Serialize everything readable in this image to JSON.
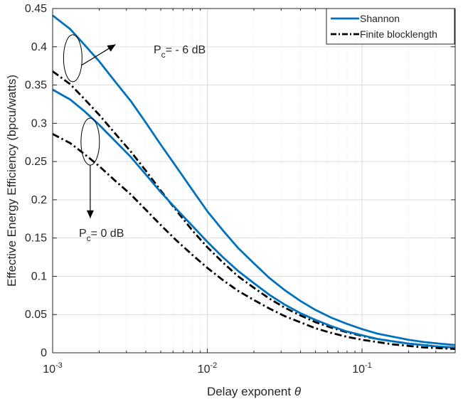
{
  "chart_data": {
    "type": "line",
    "xlabel": "Delay exponent θ",
    "ylabel": "Effective Energy Efficiency (bpcu/watts)",
    "x_scale": "log",
    "xlim": [
      0.001,
      0.4
    ],
    "ylim": [
      0,
      0.45
    ],
    "grid": true,
    "legend_position": "top-right",
    "x_ticks": [
      {
        "value": 0.001,
        "base": "10",
        "exp": "-3"
      },
      {
        "value": 0.01,
        "base": "10",
        "exp": "-2"
      },
      {
        "value": 0.1,
        "base": "10",
        "exp": "-1"
      }
    ],
    "y_ticks": [
      {
        "value": 0,
        "label": "0"
      },
      {
        "value": 0.05,
        "label": "0.05"
      },
      {
        "value": 0.1,
        "label": "0.1"
      },
      {
        "value": 0.15,
        "label": "0.15"
      },
      {
        "value": 0.2,
        "label": "0.2"
      },
      {
        "value": 0.25,
        "label": "0.25"
      },
      {
        "value": 0.3,
        "label": "0.3"
      },
      {
        "value": 0.35,
        "label": "0.35"
      },
      {
        "value": 0.4,
        "label": "0.4"
      },
      {
        "value": 0.45,
        "label": "0.45"
      }
    ],
    "legend": [
      {
        "label": "Shannon",
        "color": "#0072bd",
        "dash": "solid"
      },
      {
        "label": "Finite blocklength",
        "color": "#000000",
        "dash": "dashdot"
      }
    ],
    "series": [
      {
        "legend_index": 0,
        "group": "Pc = -6 dB",
        "color": "#0072bd",
        "dash": "solid",
        "x": [
          0.001,
          0.0013,
          0.0016,
          0.002,
          0.0025,
          0.0032,
          0.004,
          0.005,
          0.0063,
          0.008,
          0.01,
          0.0126,
          0.0158,
          0.02,
          0.0251,
          0.0316,
          0.0398,
          0.0501,
          0.0631,
          0.0794,
          0.1,
          0.126,
          0.158,
          0.2,
          0.251,
          0.316,
          0.4
        ],
        "y": [
          0.441,
          0.423,
          0.403,
          0.381,
          0.356,
          0.329,
          0.301,
          0.272,
          0.243,
          0.213,
          0.185,
          0.16,
          0.137,
          0.117,
          0.098,
          0.082,
          0.068,
          0.056,
          0.046,
          0.038,
          0.031,
          0.025,
          0.021,
          0.017,
          0.014,
          0.012,
          0.01
        ]
      },
      {
        "legend_index": 1,
        "group": "Pc = -6 dB",
        "color": "#000000",
        "dash": "dashdot",
        "x": [
          0.001,
          0.0013,
          0.0016,
          0.002,
          0.0025,
          0.0032,
          0.004,
          0.005,
          0.0063,
          0.008,
          0.01,
          0.0126,
          0.0158,
          0.02,
          0.0251,
          0.0316,
          0.0398,
          0.0501,
          0.0631,
          0.0794,
          0.1,
          0.126,
          0.158,
          0.2,
          0.251,
          0.316,
          0.4
        ],
        "y": [
          0.368,
          0.351,
          0.332,
          0.311,
          0.288,
          0.263,
          0.238,
          0.212,
          0.186,
          0.16,
          0.138,
          0.118,
          0.1,
          0.085,
          0.071,
          0.059,
          0.049,
          0.04,
          0.033,
          0.027,
          0.022,
          0.018,
          0.015,
          0.012,
          0.01,
          0.008,
          0.006
        ]
      },
      {
        "legend_index": 0,
        "group": "Pc = 0 dB",
        "color": "#0072bd",
        "dash": "solid",
        "x": [
          0.001,
          0.0013,
          0.0016,
          0.002,
          0.0025,
          0.0032,
          0.004,
          0.005,
          0.0063,
          0.008,
          0.01,
          0.0126,
          0.0158,
          0.02,
          0.0251,
          0.0316,
          0.0398,
          0.0501,
          0.0631,
          0.0794,
          0.1,
          0.126,
          0.158,
          0.2,
          0.251,
          0.316,
          0.4
        ],
        "y": [
          0.344,
          0.331,
          0.316,
          0.298,
          0.278,
          0.256,
          0.233,
          0.21,
          0.188,
          0.166,
          0.145,
          0.125,
          0.107,
          0.091,
          0.076,
          0.063,
          0.052,
          0.043,
          0.035,
          0.028,
          0.023,
          0.018,
          0.015,
          0.012,
          0.01,
          0.008,
          0.007
        ]
      },
      {
        "legend_index": 1,
        "group": "Pc = 0 dB",
        "color": "#000000",
        "dash": "dashdot",
        "x": [
          0.001,
          0.0013,
          0.0016,
          0.002,
          0.0025,
          0.0032,
          0.004,
          0.005,
          0.0063,
          0.008,
          0.01,
          0.0126,
          0.0158,
          0.02,
          0.0251,
          0.0316,
          0.0398,
          0.0501,
          0.0631,
          0.0794,
          0.1,
          0.126,
          0.158,
          0.2,
          0.251,
          0.316,
          0.4
        ],
        "y": [
          0.286,
          0.274,
          0.26,
          0.244,
          0.226,
          0.207,
          0.187,
          0.167,
          0.147,
          0.128,
          0.111,
          0.095,
          0.081,
          0.069,
          0.058,
          0.048,
          0.04,
          0.032,
          0.026,
          0.021,
          0.017,
          0.014,
          0.011,
          0.009,
          0.007,
          0.006,
          0.005
        ]
      }
    ],
    "annotations": [
      {
        "base": "P",
        "sub": "c",
        "text": "= - 6 dB",
        "ellipse": {
          "x": 0.00135,
          "y": 0.385
        },
        "arrow_to": {
          "x": 0.00255,
          "y": 0.403
        }
      },
      {
        "base": "P",
        "sub": "c",
        "text": "= 0 dB",
        "ellipse": {
          "x": 0.00175,
          "y": 0.276
        },
        "arrow_to": {
          "x": 0.00175,
          "y": 0.176
        }
      }
    ]
  }
}
